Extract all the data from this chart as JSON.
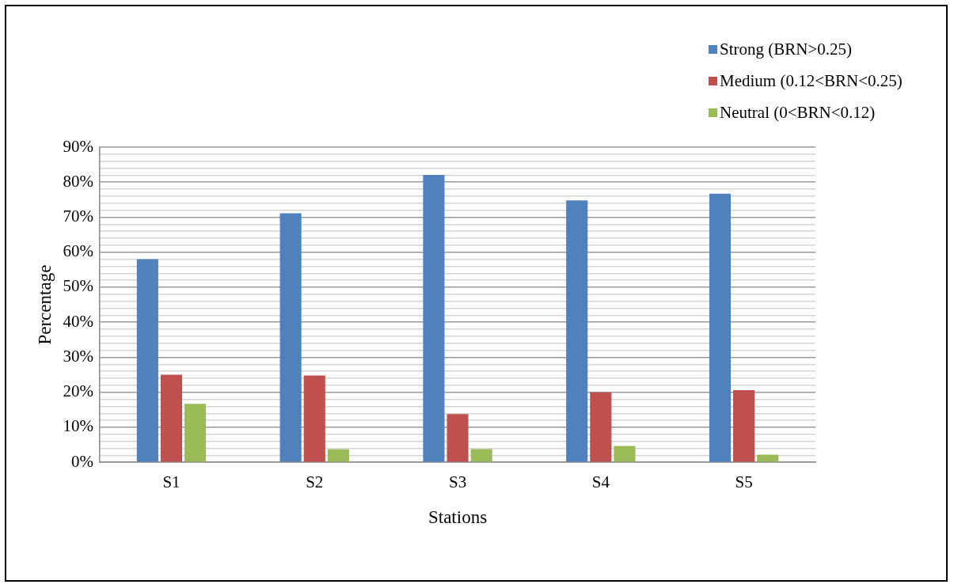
{
  "chart_data": {
    "type": "bar",
    "xlabel": "Stations",
    "ylabel": "Percentage",
    "categories": [
      "S1",
      "S2",
      "S3",
      "S4",
      "S5"
    ],
    "series": [
      {
        "name": "Strong (BRN>0.25)",
        "color": "#4f81bd",
        "values": [
          58.0,
          71.1,
          82.1,
          74.8,
          76.7
        ]
      },
      {
        "name": "Medium (0.12<BRN<0.25)",
        "color": "#c0504d",
        "values": [
          25.0,
          24.8,
          13.8,
          20.0,
          20.6
        ]
      },
      {
        "name": "Neutral (0<BRN<0.12)",
        "color": "#9bbb59",
        "values": [
          16.7,
          3.7,
          3.8,
          4.7,
          2.2
        ]
      }
    ],
    "ylim": [
      0,
      90
    ],
    "yticks": [
      {
        "value": 0,
        "label": "0%"
      },
      {
        "value": 2,
        "label": null
      },
      {
        "value": 4,
        "label": null
      },
      {
        "value": 6,
        "label": null
      },
      {
        "value": 8,
        "label": null
      },
      {
        "value": 10,
        "label": "10%"
      },
      {
        "value": 12,
        "label": null
      },
      {
        "value": 14,
        "label": null
      },
      {
        "value": 16,
        "label": null
      },
      {
        "value": 18,
        "label": null
      },
      {
        "value": 20,
        "label": "20%"
      },
      {
        "value": 22,
        "label": null
      },
      {
        "value": 24,
        "label": null
      },
      {
        "value": 26,
        "label": null
      },
      {
        "value": 28,
        "label": null
      },
      {
        "value": 30,
        "label": "30%"
      },
      {
        "value": 32,
        "label": null
      },
      {
        "value": 34,
        "label": null
      },
      {
        "value": 36,
        "label": null
      },
      {
        "value": 38,
        "label": null
      },
      {
        "value": 40,
        "label": "40%"
      },
      {
        "value": 42,
        "label": null
      },
      {
        "value": 44,
        "label": null
      },
      {
        "value": 46,
        "label": null
      },
      {
        "value": 48,
        "label": null
      },
      {
        "value": 50,
        "label": "50%"
      },
      {
        "value": 52,
        "label": null
      },
      {
        "value": 54,
        "label": null
      },
      {
        "value": 56,
        "label": null
      },
      {
        "value": 58,
        "label": null
      },
      {
        "value": 60,
        "label": "60%"
      },
      {
        "value": 62,
        "label": null
      },
      {
        "value": 64,
        "label": null
      },
      {
        "value": 66,
        "label": null
      },
      {
        "value": 68,
        "label": null
      },
      {
        "value": 70,
        "label": "70%"
      },
      {
        "value": 72,
        "label": null
      },
      {
        "value": 74,
        "label": null
      },
      {
        "value": 76,
        "label": null
      },
      {
        "value": 78,
        "label": null
      },
      {
        "value": 80,
        "label": "80%"
      },
      {
        "value": 82,
        "label": null
      },
      {
        "value": 84,
        "label": null
      },
      {
        "value": 86,
        "label": null
      },
      {
        "value": 88,
        "label": null
      },
      {
        "value": 90,
        "label": "90%"
      }
    ],
    "grid": "y",
    "legend": "top right"
  }
}
